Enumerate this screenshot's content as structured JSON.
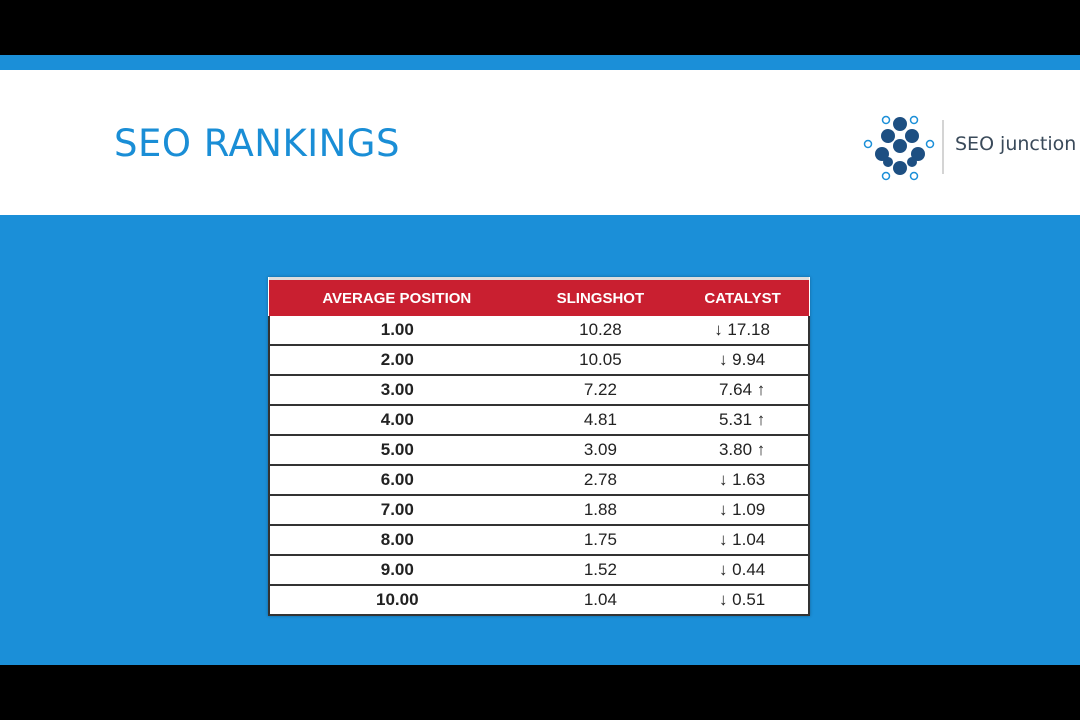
{
  "header": {
    "title": "SEO RANKINGS",
    "logo_text": "SEO junction"
  },
  "table": {
    "columns": [
      "AVERAGE POSITION",
      "SLINGSHOT",
      "CATALYST"
    ],
    "rows": [
      [
        "1.00",
        "10.28",
        "↓ 17.18"
      ],
      [
        "2.00",
        "10.05",
        "↓ 9.94"
      ],
      [
        "3.00",
        "7.22",
        "7.64 ↑"
      ],
      [
        "4.00",
        "4.81",
        "5.31 ↑"
      ],
      [
        "5.00",
        "3.09",
        "3.80 ↑"
      ],
      [
        "6.00",
        "2.78",
        "↓ 1.63"
      ],
      [
        "7.00",
        "1.88",
        "↓ 1.09"
      ],
      [
        "8.00",
        "1.75",
        "↓ 1.04"
      ],
      [
        "9.00",
        "1.52",
        "↓ 0.44"
      ],
      [
        "10.00",
        "1.04",
        "↓ 0.51"
      ]
    ]
  }
}
